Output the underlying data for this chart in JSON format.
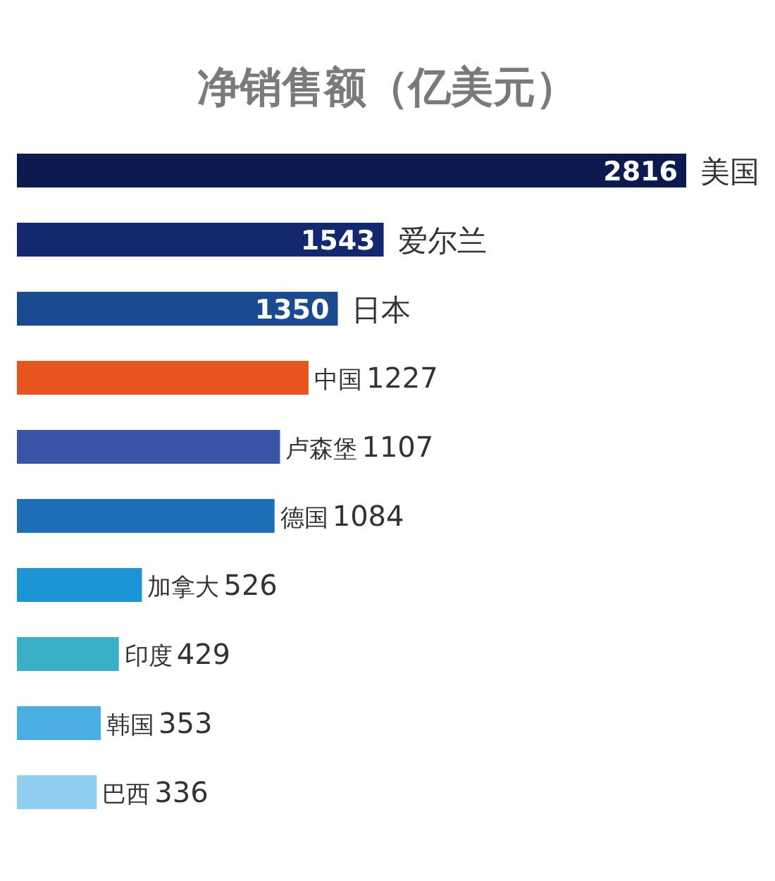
{
  "chart_data": {
    "type": "bar",
    "orientation": "horizontal",
    "title": "净销售额（亿美元）",
    "data_labels": true,
    "categories": [
      "美国",
      "爱尔兰",
      "日本",
      "中国",
      "卢森堡",
      "德国",
      "加拿大",
      "印度",
      "韩国",
      "巴西"
    ],
    "values": [
      2816,
      1543,
      1350,
      1227,
      1107,
      1084,
      526,
      429,
      353,
      336
    ],
    "colors": [
      "#0d1a4f",
      "#13286f",
      "#1a4a8f",
      "#e8541e",
      "#3a55a8",
      "#1e6fb8",
      "#1b95d6",
      "#3ab0c8",
      "#4aaee0",
      "#8fcff0"
    ]
  }
}
